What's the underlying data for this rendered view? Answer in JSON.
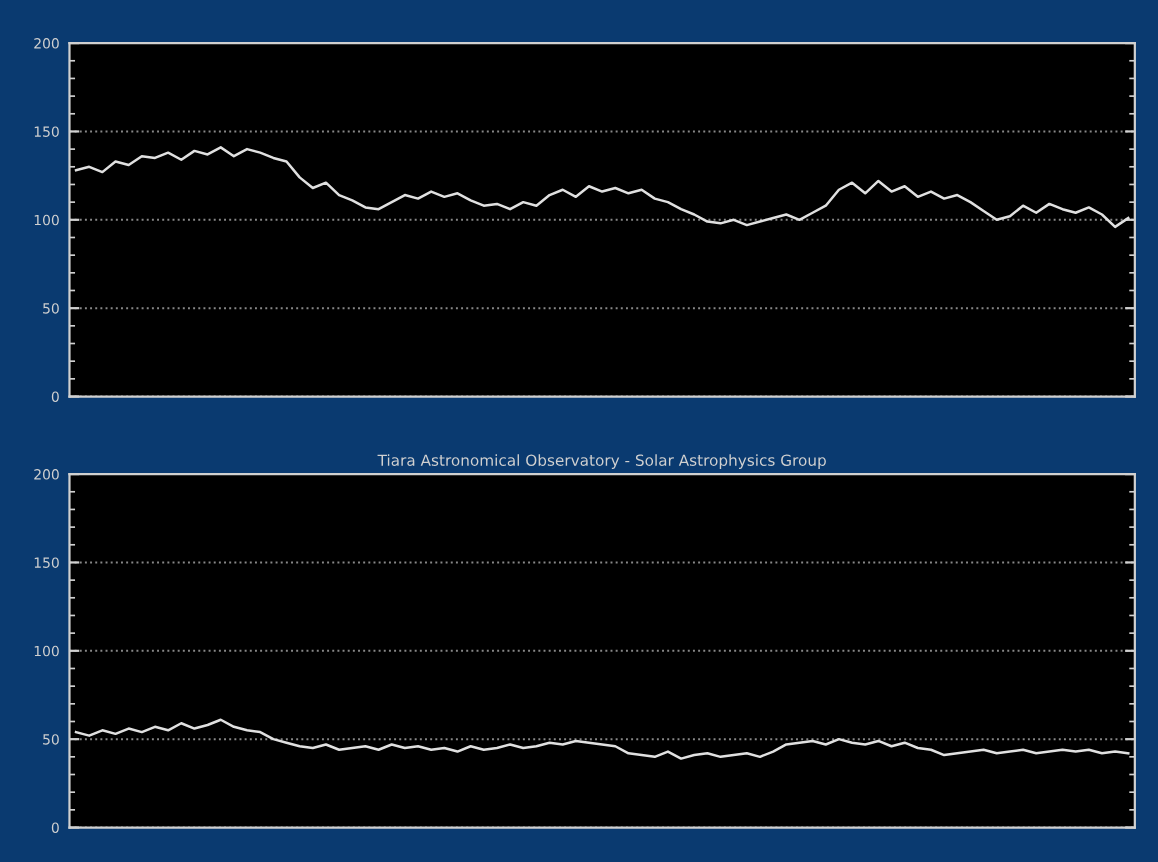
{
  "chart_data": [
    {
      "type": "line",
      "categories": [
        null,
        null,
        null,
        null,
        null,
        null,
        null,
        null,
        null,
        null,
        null,
        null,
        null,
        null,
        null,
        null,
        null,
        null,
        null,
        null,
        null,
        null,
        null,
        null,
        null,
        null,
        null,
        null,
        null,
        null,
        null,
        null,
        null,
        null,
        null,
        null,
        null,
        null,
        null,
        null,
        null,
        null,
        null,
        null,
        null,
        null,
        null,
        null,
        null,
        null,
        null,
        null,
        null,
        null,
        null,
        null,
        null,
        null,
        null,
        null,
        null,
        null,
        null,
        null,
        null,
        null,
        null,
        null,
        null,
        null,
        null,
        null,
        null,
        null,
        null,
        null,
        null,
        null,
        null,
        null,
        null
      ],
      "series": [
        {
          "color": "#e0e0e0",
          "values": [
            128,
            130,
            127,
            133,
            131,
            136,
            135,
            138,
            134,
            139,
            137,
            141,
            136,
            140,
            138,
            135,
            133,
            124,
            118,
            121,
            114,
            111,
            107,
            106,
            110,
            114,
            112,
            116,
            113,
            115,
            111,
            108,
            109,
            106,
            110,
            108,
            114,
            117,
            113,
            119,
            116,
            118,
            115,
            117,
            112,
            110,
            106,
            103,
            99,
            98,
            100,
            97,
            99,
            101,
            103,
            100,
            104,
            108,
            117,
            121,
            115,
            122,
            116,
            119,
            113,
            116,
            112,
            114,
            110,
            105,
            100,
            102,
            108,
            104,
            109,
            106,
            104,
            107,
            103,
            96,
            101
          ]
        }
      ],
      "ylim": [
        0,
        200
      ],
      "yticks": [
        0,
        50,
        100,
        150,
        200
      ],
      "grid": "y",
      "tick_labels": "y",
      "line_style": "solid",
      "marker": "none"
    },
    {
      "type": "line",
      "title": "Tiara Astronomical Observatory - Solar Astrophysics Group",
      "categories": [
        null,
        null,
        null,
        null,
        null,
        null,
        null,
        null,
        null,
        null,
        null,
        null,
        null,
        null,
        null,
        null,
        null,
        null,
        null,
        null,
        null,
        null,
        null,
        null,
        null,
        null,
        null,
        null,
        null,
        null,
        null,
        null,
        null,
        null,
        null,
        null,
        null,
        null,
        null,
        null,
        null,
        null,
        null,
        null,
        null,
        null,
        null,
        null,
        null,
        null,
        null,
        null,
        null,
        null,
        null,
        null,
        null,
        null,
        null,
        null,
        null,
        null,
        null,
        null,
        null,
        null,
        null,
        null,
        null,
        null,
        null,
        null,
        null,
        null,
        null,
        null,
        null,
        null,
        null,
        null,
        null
      ],
      "series": [
        {
          "color": "#e0e0e0",
          "values": [
            54,
            52,
            55,
            53,
            56,
            54,
            57,
            55,
            59,
            56,
            58,
            61,
            57,
            55,
            54,
            50,
            48,
            46,
            45,
            47,
            44,
            45,
            46,
            44,
            47,
            45,
            46,
            44,
            45,
            43,
            46,
            44,
            45,
            47,
            45,
            46,
            48,
            47,
            49,
            48,
            47,
            46,
            42,
            41,
            40,
            43,
            39,
            41,
            42,
            40,
            41,
            42,
            40,
            43,
            47,
            48,
            49,
            47,
            50,
            48,
            47,
            49,
            46,
            48,
            45,
            44,
            41,
            42,
            43,
            44,
            42,
            43,
            44,
            42,
            43,
            44,
            43,
            44,
            42,
            43,
            42
          ]
        }
      ],
      "ylim": [
        0,
        200
      ],
      "yticks": [
        0,
        50,
        100,
        150,
        200
      ],
      "grid": "y",
      "tick_labels": "y",
      "line_style": "solid",
      "marker": "none"
    }
  ]
}
